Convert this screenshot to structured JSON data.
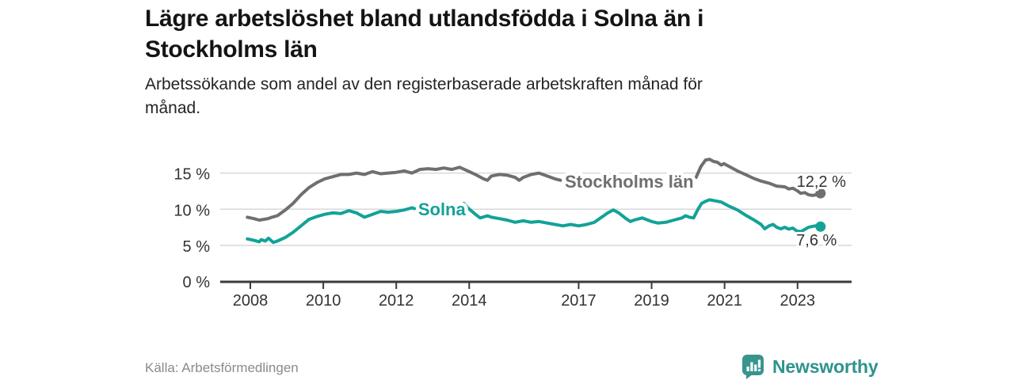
{
  "header": {
    "title_line1": "Lägre arbetslöshet bland utlandsfödda i Solna än i",
    "title_line2": "Stockholms län",
    "subtitle_line1": "Arbetssökande som andel av den registerbaserade arbetskraften månad för",
    "subtitle_line2": "månad."
  },
  "footer": {
    "source": "Källa: Arbetsförmedlingen",
    "brand": "Newsworthy"
  },
  "colors": {
    "stockholm_line": "#6f6f6f",
    "solna_line": "#13a298",
    "axis": "#3a3a3a",
    "gridline": "#d9d9d9",
    "tick_text": "#333333",
    "value_text": "#333333",
    "logo_teal": "#2e938c"
  },
  "chart_data": {
    "type": "line",
    "title": "Lägre arbetslöshet bland utlandsfödda i Solna än i Stockholms län",
    "subtitle": "Arbetssökande som andel av den registerbaserade arbetskraften månad för månad.",
    "unit": "%",
    "grid": true,
    "legend": "inline-labels",
    "x_axis": {
      "range": [
        2007.9,
        2023.8
      ],
      "ticks": [
        2008,
        2010,
        2012,
        2014,
        2017,
        2019,
        2021,
        2023
      ],
      "tick_labels": [
        "2008",
        "2010",
        "2012",
        "2014",
        "2017",
        "2019",
        "2021",
        "2023"
      ]
    },
    "y_axis": {
      "range": [
        0,
        18
      ],
      "ticks": [
        0,
        5,
        10,
        15
      ],
      "tick_labels": [
        "0 %",
        "5 %",
        "10 %",
        "15 %"
      ]
    },
    "series": [
      {
        "name": "Stockholms län",
        "color": "#6f6f6f",
        "end_label": "12,2 %",
        "end_value": 12.2,
        "label_at": [
          2016.62,
          13.0
        ],
        "end_label_offset": [
          1,
          -8
        ],
        "segments": [
          [
            [
              2007.92,
              8.9
            ],
            [
              2008.1,
              8.7
            ],
            [
              2008.24,
              8.5
            ],
            [
              2008.37,
              8.6
            ],
            [
              2008.48,
              8.7
            ],
            [
              2008.59,
              8.9
            ],
            [
              2008.74,
              9.1
            ],
            [
              2008.96,
              9.9
            ],
            [
              2009.17,
              10.8
            ],
            [
              2009.39,
              12.0
            ],
            [
              2009.61,
              13.0
            ],
            [
              2009.83,
              13.7
            ],
            [
              2010.04,
              14.2
            ],
            [
              2010.26,
              14.5
            ],
            [
              2010.48,
              14.8
            ],
            [
              2010.7,
              14.8
            ],
            [
              2010.91,
              15.0
            ],
            [
              2011.13,
              14.8
            ],
            [
              2011.35,
              15.2
            ],
            [
              2011.57,
              14.9
            ],
            [
              2011.78,
              15.0
            ],
            [
              2012.0,
              15.1
            ],
            [
              2012.22,
              15.3
            ],
            [
              2012.43,
              15.0
            ],
            [
              2012.65,
              15.5
            ],
            [
              2012.87,
              15.6
            ],
            [
              2013.09,
              15.5
            ],
            [
              2013.3,
              15.7
            ],
            [
              2013.52,
              15.5
            ],
            [
              2013.74,
              15.8
            ],
            [
              2013.96,
              15.3
            ],
            [
              2014.17,
              14.8
            ],
            [
              2014.39,
              14.2
            ],
            [
              2014.5,
              14.0
            ],
            [
              2014.61,
              14.6
            ],
            [
              2014.83,
              14.8
            ],
            [
              2015.04,
              14.7
            ],
            [
              2015.26,
              14.4
            ],
            [
              2015.37,
              14.0
            ],
            [
              2015.48,
              14.4
            ],
            [
              2015.7,
              14.8
            ],
            [
              2015.91,
              15.0
            ],
            [
              2016.02,
              14.8
            ],
            [
              2016.13,
              14.6
            ],
            [
              2016.35,
              14.2
            ],
            [
              2016.5,
              14.0
            ]
          ],
          [
            [
              2020.22,
              14.4
            ],
            [
              2020.35,
              15.9
            ],
            [
              2020.48,
              16.8
            ],
            [
              2020.59,
              16.9
            ],
            [
              2020.7,
              16.6
            ],
            [
              2020.8,
              16.5
            ],
            [
              2020.91,
              16.1
            ],
            [
              2020.98,
              16.3
            ],
            [
              2021.13,
              15.9
            ],
            [
              2021.35,
              15.3
            ],
            [
              2021.57,
              14.8
            ],
            [
              2021.78,
              14.3
            ],
            [
              2022.0,
              13.9
            ],
            [
              2022.22,
              13.6
            ],
            [
              2022.43,
              13.2
            ],
            [
              2022.65,
              13.1
            ],
            [
              2022.76,
              12.8
            ],
            [
              2022.87,
              12.9
            ],
            [
              2022.98,
              12.6
            ],
            [
              2023.09,
              12.2
            ],
            [
              2023.2,
              12.3
            ],
            [
              2023.3,
              12.0
            ],
            [
              2023.41,
              11.9
            ],
            [
              2023.52,
              12.0
            ],
            [
              2023.63,
              12.2
            ]
          ]
        ]
      },
      {
        "name": "Solna",
        "color": "#13a298",
        "end_label": "7,6 %",
        "end_value": 7.6,
        "label_at": [
          2012.6,
          9.16
        ],
        "end_label_offset": [
          -5,
          24
        ],
        "segments": [
          [
            [
              2007.92,
              5.9
            ],
            [
              2008.1,
              5.7
            ],
            [
              2008.24,
              5.5
            ],
            [
              2008.3,
              5.8
            ],
            [
              2008.41,
              5.6
            ],
            [
              2008.5,
              6.0
            ],
            [
              2008.63,
              5.4
            ],
            [
              2008.74,
              5.6
            ],
            [
              2008.96,
              6.1
            ],
            [
              2009.17,
              6.8
            ],
            [
              2009.39,
              7.7
            ],
            [
              2009.61,
              8.6
            ],
            [
              2009.83,
              9.0
            ],
            [
              2010.04,
              9.3
            ],
            [
              2010.26,
              9.5
            ],
            [
              2010.48,
              9.4
            ],
            [
              2010.7,
              9.8
            ],
            [
              2010.91,
              9.5
            ],
            [
              2011.13,
              8.9
            ],
            [
              2011.35,
              9.3
            ],
            [
              2011.57,
              9.7
            ],
            [
              2011.78,
              9.6
            ],
            [
              2012.0,
              9.7
            ],
            [
              2012.22,
              9.9
            ],
            [
              2012.43,
              10.2
            ],
            [
              2012.5,
              10.1
            ]
          ],
          [
            [
              2013.85,
              10.8
            ],
            [
              2013.96,
              10.2
            ],
            [
              2014.17,
              9.3
            ],
            [
              2014.3,
              8.8
            ],
            [
              2014.5,
              9.1
            ],
            [
              2014.61,
              8.9
            ],
            [
              2014.83,
              8.7
            ],
            [
              2015.04,
              8.5
            ],
            [
              2015.26,
              8.2
            ],
            [
              2015.48,
              8.4
            ],
            [
              2015.7,
              8.2
            ],
            [
              2015.91,
              8.3
            ],
            [
              2016.13,
              8.1
            ],
            [
              2016.35,
              7.9
            ],
            [
              2016.57,
              7.7
            ],
            [
              2016.78,
              7.9
            ],
            [
              2017.0,
              7.7
            ],
            [
              2017.22,
              7.9
            ],
            [
              2017.43,
              8.2
            ],
            [
              2017.6,
              8.8
            ],
            [
              2017.8,
              9.5
            ],
            [
              2017.95,
              9.9
            ],
            [
              2018.1,
              9.5
            ],
            [
              2018.3,
              8.7
            ],
            [
              2018.42,
              8.3
            ],
            [
              2018.52,
              8.5
            ],
            [
              2018.74,
              8.8
            ],
            [
              2019.0,
              8.3
            ],
            [
              2019.17,
              8.1
            ],
            [
              2019.39,
              8.2
            ],
            [
              2019.61,
              8.5
            ],
            [
              2019.83,
              8.8
            ],
            [
              2019.93,
              9.1
            ],
            [
              2020.04,
              8.9
            ],
            [
              2020.15,
              8.8
            ],
            [
              2020.26,
              9.9
            ],
            [
              2020.37,
              10.8
            ],
            [
              2020.48,
              11.1
            ],
            [
              2020.59,
              11.3
            ],
            [
              2020.7,
              11.2
            ],
            [
              2020.91,
              11.0
            ],
            [
              2021.13,
              10.4
            ],
            [
              2021.35,
              9.9
            ],
            [
              2021.57,
              9.2
            ],
            [
              2021.78,
              8.6
            ],
            [
              2022.0,
              7.9
            ],
            [
              2022.1,
              7.3
            ],
            [
              2022.22,
              7.7
            ],
            [
              2022.33,
              7.9
            ],
            [
              2022.43,
              7.5
            ],
            [
              2022.54,
              7.3
            ],
            [
              2022.65,
              7.5
            ],
            [
              2022.76,
              7.25
            ],
            [
              2022.87,
              7.4
            ],
            [
              2022.98,
              7.0
            ],
            [
              2023.09,
              6.9
            ],
            [
              2023.3,
              7.5
            ],
            [
              2023.48,
              7.7
            ],
            [
              2023.63,
              7.6
            ]
          ]
        ]
      }
    ]
  }
}
